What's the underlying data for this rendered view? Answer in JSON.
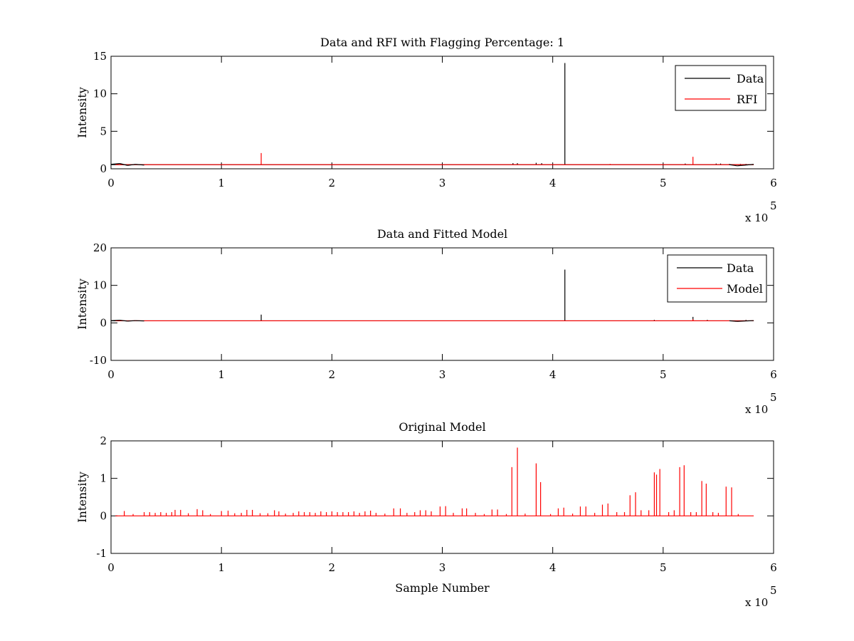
{
  "chart_data": [
    {
      "type": "line",
      "title": "Data and RFI with Flagging Percentage: 1",
      "xlabel": "",
      "ylabel": "Intensity",
      "xlim": [
        0,
        600000
      ],
      "ylim": [
        0,
        15
      ],
      "xticks": [
        0,
        1,
        2,
        3,
        4,
        5,
        6
      ],
      "yticks": [
        0,
        5,
        10,
        15
      ],
      "x_exponent_label": "x 10",
      "x_exponent": "5",
      "grid": false,
      "legend_position": "top-right",
      "baseline": 0.55,
      "x_end": 582000,
      "series": [
        {
          "name": "Data",
          "color": "#000000",
          "peaks": [
            [
              364000,
              0.75
            ],
            [
              368000,
              0.75
            ],
            [
              385000,
              0.8
            ],
            [
              390000,
              0.75
            ],
            [
              411000,
              14.1
            ],
            [
              520000,
              0.7
            ],
            [
              548000,
              0.7
            ],
            [
              552000,
              0.7
            ],
            [
              560000,
              0.65
            ],
            [
              570000,
              0.65
            ],
            [
              575000,
              0.65
            ]
          ]
        },
        {
          "name": "RFI",
          "color": "#ff0000",
          "peaks": [
            [
              136000,
              2.1
            ],
            [
              452000,
              0.65
            ],
            [
              493000,
              0.62
            ],
            [
              527000,
              1.6
            ]
          ]
        }
      ]
    },
    {
      "type": "line",
      "title": "Data and Fitted Model",
      "xlabel": "",
      "ylabel": "Intensity",
      "xlim": [
        0,
        600000
      ],
      "ylim": [
        -10,
        20
      ],
      "xticks": [
        0,
        1,
        2,
        3,
        4,
        5,
        6
      ],
      "yticks": [
        -10,
        0,
        10,
        20
      ],
      "x_exponent_label": "x 10",
      "x_exponent": "5",
      "grid": false,
      "legend_position": "top-right",
      "baseline": 0.55,
      "x_end": 582000,
      "series": [
        {
          "name": "Data",
          "color": "#000000",
          "peaks": [
            [
              136000,
              2.2
            ],
            [
              411000,
              14.2
            ],
            [
              492000,
              0.8
            ],
            [
              527000,
              1.6
            ],
            [
              540000,
              0.8
            ],
            [
              575000,
              0.8
            ]
          ]
        },
        {
          "name": "Model",
          "color": "#ff0000",
          "peaks": [
            [
              527000,
              1.0
            ]
          ]
        }
      ]
    },
    {
      "type": "line",
      "title": "Original Model",
      "xlabel": "Sample Number",
      "ylabel": "Intensity",
      "xlim": [
        0,
        600000
      ],
      "ylim": [
        -1,
        2
      ],
      "xticks": [
        0,
        1,
        2,
        3,
        4,
        5,
        6
      ],
      "yticks": [
        -1,
        0,
        1,
        2
      ],
      "x_exponent_label": "x 10",
      "x_exponent": "5",
      "grid": false,
      "legend_position": "none",
      "baseline": 0.0,
      "x_end": 582000,
      "series": [
        {
          "color": "#ff0000",
          "peaks": [
            [
              12000,
              0.13
            ],
            [
              20000,
              0.05
            ],
            [
              30000,
              0.1
            ],
            [
              35000,
              0.1
            ],
            [
              40000,
              0.08
            ],
            [
              45000,
              0.1
            ],
            [
              50000,
              0.08
            ],
            [
              55000,
              0.1
            ],
            [
              58000,
              0.16
            ],
            [
              63000,
              0.16
            ],
            [
              70000,
              0.07
            ],
            [
              78000,
              0.18
            ],
            [
              83000,
              0.15
            ],
            [
              90000,
              0.05
            ],
            [
              100000,
              0.13
            ],
            [
              106000,
              0.14
            ],
            [
              112000,
              0.07
            ],
            [
              118000,
              0.08
            ],
            [
              123000,
              0.16
            ],
            [
              128000,
              0.16
            ],
            [
              135000,
              0.07
            ],
            [
              142000,
              0.07
            ],
            [
              148000,
              0.15
            ],
            [
              152000,
              0.12
            ],
            [
              158000,
              0.06
            ],
            [
              165000,
              0.08
            ],
            [
              170000,
              0.12
            ],
            [
              175000,
              0.1
            ],
            [
              180000,
              0.1
            ],
            [
              185000,
              0.08
            ],
            [
              190000,
              0.12
            ],
            [
              195000,
              0.1
            ],
            [
              200000,
              0.12
            ],
            [
              205000,
              0.1
            ],
            [
              210000,
              0.1
            ],
            [
              215000,
              0.1
            ],
            [
              220000,
              0.12
            ],
            [
              225000,
              0.08
            ],
            [
              230000,
              0.12
            ],
            [
              235000,
              0.14
            ],
            [
              240000,
              0.08
            ],
            [
              248000,
              0.06
            ],
            [
              256000,
              0.2
            ],
            [
              262000,
              0.2
            ],
            [
              268000,
              0.08
            ],
            [
              275000,
              0.1
            ],
            [
              280000,
              0.15
            ],
            [
              285000,
              0.15
            ],
            [
              290000,
              0.12
            ],
            [
              298000,
              0.25
            ],
            [
              303000,
              0.26
            ],
            [
              310000,
              0.08
            ],
            [
              318000,
              0.2
            ],
            [
              322000,
              0.2
            ],
            [
              330000,
              0.08
            ],
            [
              338000,
              0.05
            ],
            [
              345000,
              0.17
            ],
            [
              350000,
              0.17
            ],
            [
              358000,
              0.05
            ],
            [
              363000,
              1.3
            ],
            [
              368000,
              1.82
            ],
            [
              375000,
              0.06
            ],
            [
              385000,
              1.4
            ],
            [
              389000,
              0.9
            ],
            [
              398000,
              0.05
            ],
            [
              405000,
              0.2
            ],
            [
              410000,
              0.22
            ],
            [
              418000,
              0.06
            ],
            [
              425000,
              0.25
            ],
            [
              430000,
              0.25
            ],
            [
              438000,
              0.08
            ],
            [
              445000,
              0.3
            ],
            [
              450000,
              0.33
            ],
            [
              458000,
              0.1
            ],
            [
              465000,
              0.1
            ],
            [
              470000,
              0.55
            ],
            [
              475000,
              0.63
            ],
            [
              480000,
              0.15
            ],
            [
              487000,
              0.15
            ],
            [
              492000,
              1.16
            ],
            [
              494000,
              1.1
            ],
            [
              497000,
              1.25
            ],
            [
              505000,
              0.1
            ],
            [
              510000,
              0.15
            ],
            [
              515000,
              1.3
            ],
            [
              519000,
              1.35
            ],
            [
              525000,
              0.1
            ],
            [
              530000,
              0.1
            ],
            [
              535000,
              0.93
            ],
            [
              539000,
              0.86
            ],
            [
              545000,
              0.1
            ],
            [
              550000,
              0.08
            ],
            [
              557000,
              0.78
            ],
            [
              562000,
              0.76
            ],
            [
              568000,
              0.05
            ]
          ]
        }
      ]
    }
  ]
}
